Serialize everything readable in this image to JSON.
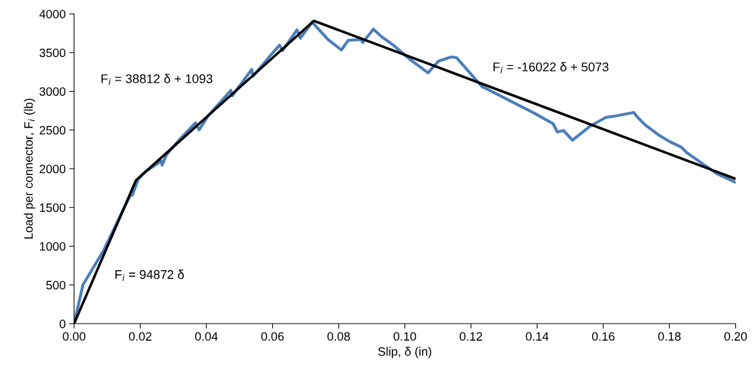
{
  "chart_data": {
    "type": "line",
    "xlabel": "Slip, δ (in)",
    "ylabel": "Load per connector, F$_{i}$ (lb)",
    "xlim": [
      0,
      0.2
    ],
    "ylim": [
      0,
      4000
    ],
    "xticks": [
      {
        "value": 0,
        "label": "0.00"
      },
      {
        "value": 0.02,
        "label": "0.02"
      },
      {
        "value": 0.04,
        "label": "0.04"
      },
      {
        "value": 0.06,
        "label": "0.06"
      },
      {
        "value": 0.08,
        "label": "0.08"
      },
      {
        "value": 0.1,
        "label": "0.10"
      },
      {
        "value": 0.12,
        "label": "0.12"
      },
      {
        "value": 0.14,
        "label": "0.14"
      },
      {
        "value": 0.16,
        "label": "0.16"
      },
      {
        "value": 0.18,
        "label": "0.18"
      },
      {
        "value": 0.2,
        "label": "0.20"
      }
    ],
    "yticks": [
      0,
      500,
      1000,
      1500,
      2000,
      2500,
      3000,
      3500,
      4000
    ],
    "grid": false,
    "marker": "none",
    "line_style": "solid",
    "series": [
      {
        "color": "#4a7ebb",
        "x": [
          0,
          0.0027,
          0.009,
          0.0174,
          0.0176,
          0.0195,
          0.0216,
          0.0264,
          0.0266,
          0.0279,
          0.0321,
          0.0367,
          0.0378,
          0.0405,
          0.0474,
          0.0478,
          0.0537,
          0.0541,
          0.0579,
          0.0621,
          0.063,
          0.0674,
          0.0684,
          0.072,
          0.0735,
          0.0768,
          0.0808,
          0.0829,
          0.0867,
          0.0873,
          0.0905,
          0.093,
          0.0965,
          0.1014,
          0.107,
          0.1102,
          0.114,
          0.1156,
          0.1234,
          0.1244,
          0.1391,
          0.1448,
          0.1461,
          0.148,
          0.1507,
          0.1559,
          0.1608,
          0.1637,
          0.1692,
          0.1706,
          0.1727,
          0.1769,
          0.1805,
          0.1836,
          0.1853,
          0.1943,
          0.2
        ],
        "values": [
          0,
          502,
          951,
          1695,
          1660,
          1875,
          1964,
          2100,
          2045,
          2180,
          2386,
          2592,
          2502,
          2682,
          3013,
          2942,
          3283,
          3193,
          3390,
          3597,
          3525,
          3794,
          3686,
          3893,
          3821,
          3668,
          3534,
          3659,
          3668,
          3632,
          3803,
          3704,
          3597,
          3417,
          3238,
          3390,
          3444,
          3435,
          3058,
          3040,
          2718,
          2583,
          2475,
          2493,
          2368,
          2547,
          2664,
          2682,
          2727,
          2655,
          2565,
          2431,
          2341,
          2278,
          2206,
          1937,
          1825
        ]
      },
      {
        "color": "#000000",
        "x": [
          0,
          0.0187,
          0.0725,
          0.2
        ],
        "values": [
          0,
          1850,
          3910,
          1870
        ]
      }
    ],
    "annotations": [
      "F$_{i}$ = 38812 δ + 1093",
      "F$_{i}$ = -16022 δ + 5073",
      "F$_{i}$ = 94872 δ"
    ]
  }
}
